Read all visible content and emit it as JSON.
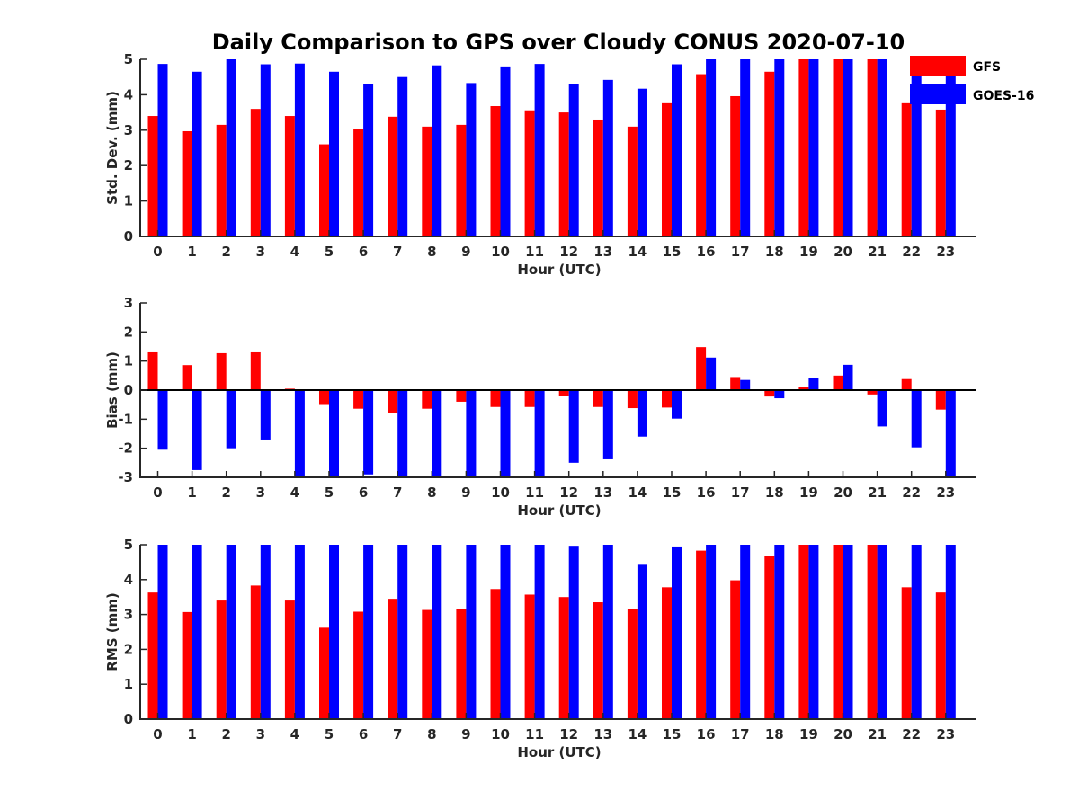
{
  "title": "Daily Comparison to GPS over Cloudy CONUS 2020-07-10",
  "colors": {
    "GFS": "#ff0000",
    "GOES-16": "#0000ff",
    "axis": "#262626"
  },
  "legend": {
    "placement": "top-right",
    "entries": [
      "GFS",
      "GOES-16"
    ]
  },
  "chart_data": [
    {
      "type": "bar",
      "xlabel": "Hour (UTC)",
      "ylabel": "Std. Dev. (mm)",
      "ylim": [
        0,
        5
      ],
      "yticks": [
        0,
        1,
        2,
        3,
        4,
        5
      ],
      "categories": [
        "0",
        "1",
        "2",
        "3",
        "4",
        "5",
        "6",
        "7",
        "8",
        "9",
        "10",
        "11",
        "12",
        "13",
        "14",
        "15",
        "16",
        "17",
        "18",
        "19",
        "20",
        "21",
        "22",
        "23"
      ],
      "series": [
        {
          "name": "GFS",
          "values": [
            3.4,
            2.97,
            3.15,
            3.6,
            3.4,
            2.6,
            3.02,
            3.38,
            3.1,
            3.15,
            3.68,
            3.56,
            3.5,
            3.3,
            3.1,
            3.76,
            4.58,
            3.96,
            4.65,
            5,
            5,
            5,
            3.76,
            3.58
          ]
        },
        {
          "name": "GOES-16",
          "values": [
            4.87,
            4.65,
            5,
            4.86,
            4.88,
            4.65,
            4.3,
            4.5,
            4.83,
            4.33,
            4.8,
            4.87,
            4.3,
            4.42,
            4.17,
            4.86,
            5,
            5,
            5,
            5,
            5,
            5,
            5,
            5
          ]
        }
      ]
    },
    {
      "type": "bar",
      "xlabel": "Hour (UTC)",
      "ylabel": "Bias (mm)",
      "ylim": [
        -3,
        3
      ],
      "yticks": [
        -3,
        -2,
        -1,
        0,
        1,
        2,
        3
      ],
      "categories": [
        "0",
        "1",
        "2",
        "3",
        "4",
        "5",
        "6",
        "7",
        "8",
        "9",
        "10",
        "11",
        "12",
        "13",
        "14",
        "15",
        "16",
        "17",
        "18",
        "19",
        "20",
        "21",
        "22",
        "23"
      ],
      "series": [
        {
          "name": "GFS",
          "values": [
            1.3,
            0.86,
            1.27,
            1.3,
            0.05,
            -0.48,
            -0.64,
            -0.8,
            -0.64,
            -0.4,
            -0.58,
            -0.58,
            -0.2,
            -0.58,
            -0.62,
            -0.6,
            1.48,
            0.45,
            -0.22,
            0.1,
            0.5,
            -0.15,
            0.38,
            -0.67
          ]
        },
        {
          "name": "GOES-16",
          "values": [
            -2.05,
            -2.75,
            -2.0,
            -1.7,
            -3,
            -3,
            -2.9,
            -3,
            -3,
            -3,
            -3,
            -3,
            -2.5,
            -2.38,
            -1.6,
            -0.98,
            1.12,
            0.35,
            -0.28,
            0.43,
            0.87,
            -1.25,
            -1.97,
            -3
          ]
        }
      ]
    },
    {
      "type": "bar",
      "xlabel": "Hour (UTC)",
      "ylabel": "RMS (mm)",
      "ylim": [
        0,
        5
      ],
      "yticks": [
        0,
        1,
        2,
        3,
        4,
        5
      ],
      "categories": [
        "0",
        "1",
        "2",
        "3",
        "4",
        "5",
        "6",
        "7",
        "8",
        "9",
        "10",
        "11",
        "12",
        "13",
        "14",
        "15",
        "16",
        "17",
        "18",
        "19",
        "20",
        "21",
        "22",
        "23"
      ],
      "series": [
        {
          "name": "GFS",
          "values": [
            3.63,
            3.07,
            3.4,
            3.83,
            3.4,
            2.62,
            3.08,
            3.45,
            3.13,
            3.16,
            3.73,
            3.57,
            3.5,
            3.35,
            3.15,
            3.78,
            4.83,
            3.98,
            4.67,
            5,
            5,
            5,
            3.78,
            3.63
          ]
        },
        {
          "name": "GOES-16",
          "values": [
            5,
            5,
            5,
            5,
            5,
            5,
            5,
            5,
            5,
            5,
            5,
            5,
            4.97,
            5,
            4.45,
            4.95,
            5,
            5,
            5,
            5,
            5,
            5,
            5,
            5
          ]
        }
      ]
    }
  ]
}
